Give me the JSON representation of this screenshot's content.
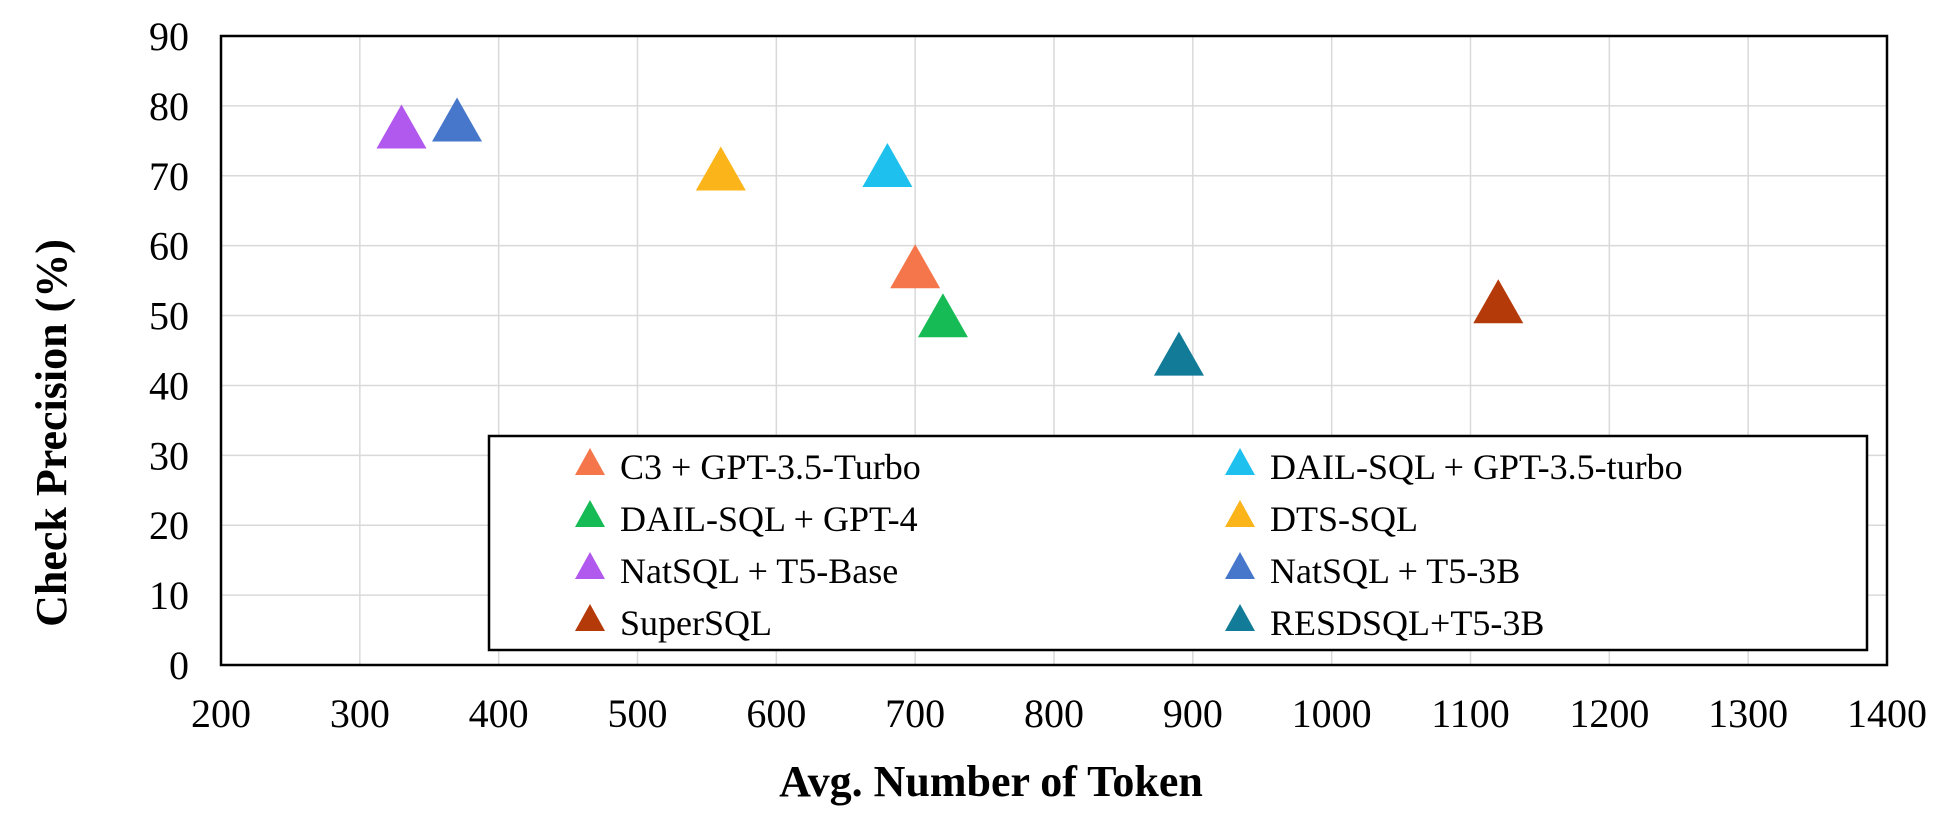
{
  "chart_data": {
    "type": "scatter",
    "marker": "triangle",
    "title": "",
    "xlabel": "Avg. Number of Token",
    "ylabel": "Check  Precision (%)",
    "xlim": [
      200,
      1400
    ],
    "ylim": [
      0,
      90
    ],
    "xticks": [
      "200",
      "300",
      "400",
      "500",
      "600",
      "700",
      "800",
      "900",
      "1000",
      "1100",
      "1200",
      "1300",
      "1400"
    ],
    "yticks": [
      "0",
      "10",
      "20",
      "30",
      "40",
      "50",
      "60",
      "70",
      "80",
      "90"
    ],
    "grid": true,
    "legend_position": "bottom-right, two columns",
    "series": [
      {
        "name": "C3 + GPT-3.5-Turbo",
        "color": "#f4764a",
        "x": 700,
        "y": 56
      },
      {
        "name": "DAIL-SQL + GPT-3.5-turbo",
        "color": "#1ec0ee",
        "x": 680,
        "y": 70.5
      },
      {
        "name": "DAIL-SQL + GPT-4",
        "color": "#17bb55",
        "x": 720,
        "y": 49
      },
      {
        "name": "DTS-SQL",
        "color": "#fbb419",
        "x": 560,
        "y": 70
      },
      {
        "name": "NatSQL + T5-Base",
        "color": "#b158ee",
        "x": 330,
        "y": 76
      },
      {
        "name": "NatSQL + T5-3B",
        "color": "#4677cb",
        "x": 370,
        "y": 77
      },
      {
        "name": "SuperSQL",
        "color": "#b53a09",
        "x": 1120,
        "y": 51
      },
      {
        "name": "RESDSQL+T5-3B",
        "color": "#127b97",
        "x": 890,
        "y": 43.5
      }
    ]
  }
}
